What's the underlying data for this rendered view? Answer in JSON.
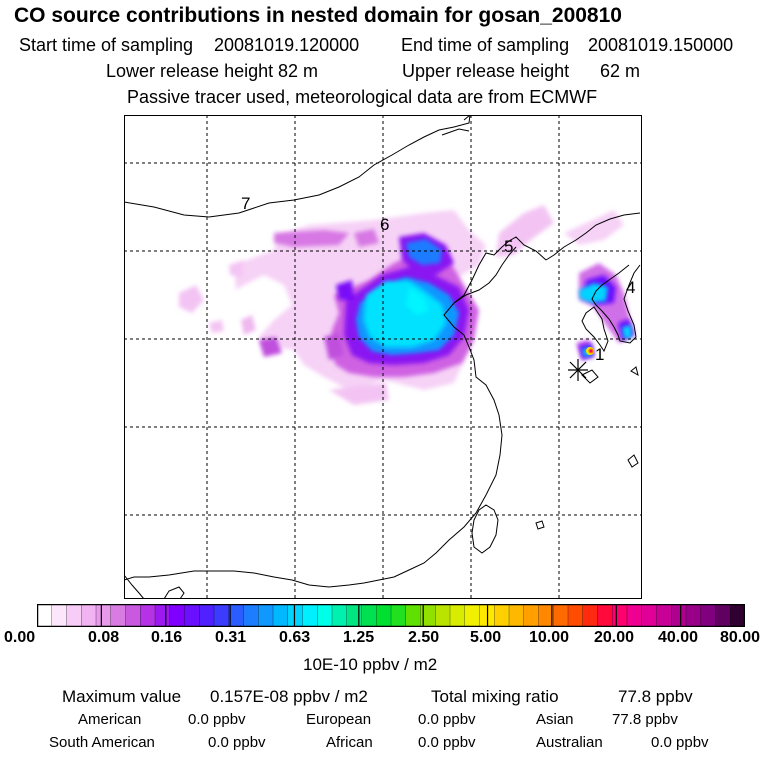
{
  "header": {
    "title": "CO  source contributions in nested domain for gosan_200810",
    "start_label": "Start time of sampling",
    "start_value": "20081019.120000",
    "end_label": "End time of sampling",
    "end_value": "20081019.150000",
    "lower_label": "Lower release height",
    "lower_value": "82 m",
    "upper_label": "Upper release height",
    "upper_value": "62 m",
    "tracer_note": "Passive tracer used, meteorological data are from ECMWF"
  },
  "map": {
    "region_labels": [
      "7",
      "6",
      "5",
      "4",
      "1"
    ],
    "receptor_marker": "gosan-receptor"
  },
  "colorbar": {
    "ticks": [
      "0.00",
      "0.08",
      "0.16",
      "0.31",
      "0.63",
      "1.25",
      "2.50",
      "5.00",
      "10.00",
      "20.00",
      "40.00",
      "80.00"
    ],
    "unit": "10E-10 ppbv / m2",
    "colors": [
      "#ffffff",
      "#fbe6fb",
      "#f7ccf7",
      "#f2b3f2",
      "#e69ae9",
      "#d97ce2",
      "#c95ae0",
      "#b533e6",
      "#9c1af0",
      "#7f00ff",
      "#6a10ff",
      "#5020ff",
      "#3c3cff",
      "#2a5cff",
      "#1e7cff",
      "#1098ff",
      "#00b8ff",
      "#00d4ff",
      "#00f0ff",
      "#00ffe8",
      "#00f0b0",
      "#00e680",
      "#00e050",
      "#00e030",
      "#20e020",
      "#60e000",
      "#90e000",
      "#b8e400",
      "#d8ec00",
      "#f0f000",
      "#ffe800",
      "#ffd000",
      "#ffb800",
      "#ffa000",
      "#ff8800",
      "#ff6a00",
      "#ff4c00",
      "#ff2a10",
      "#ff0a3a",
      "#ff0070",
      "#f00090",
      "#e00098",
      "#c80098",
      "#b00090",
      "#980088",
      "#800080",
      "#600060",
      "#300030"
    ]
  },
  "footer": {
    "max_label": "Maximum value",
    "max_value": "0.157E-08 ppbv / m2",
    "total_label": "Total mixing ratio",
    "total_value": "77.8 ppbv",
    "american_label": "American",
    "american_value": "0.0 ppbv",
    "european_label": "European",
    "european_value": "0.0 ppbv",
    "asian_label": "Asian",
    "asian_value": "77.8 ppbv",
    "south_american_label": "South American",
    "south_american_value": "0.0 ppbv",
    "african_label": "African",
    "african_value": "0.0 ppbv",
    "australian_label": "Australian",
    "australian_value": "0.0 ppbv"
  }
}
